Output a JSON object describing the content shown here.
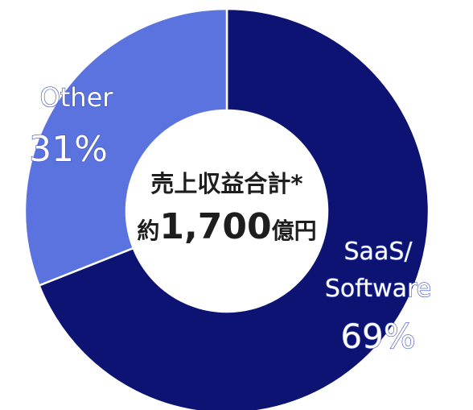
{
  "chart_data": {
    "type": "donut",
    "categories": [
      "SaaS/\nSoftware",
      "Other"
    ],
    "values": [
      69,
      31
    ],
    "value_labels": [
      "69%",
      "31%"
    ],
    "colors": [
      "#0c1372",
      "#5a73df"
    ],
    "center_title": "売上収益合計*",
    "center_value_parts": [
      "約",
      "1,700",
      "億円"
    ]
  }
}
